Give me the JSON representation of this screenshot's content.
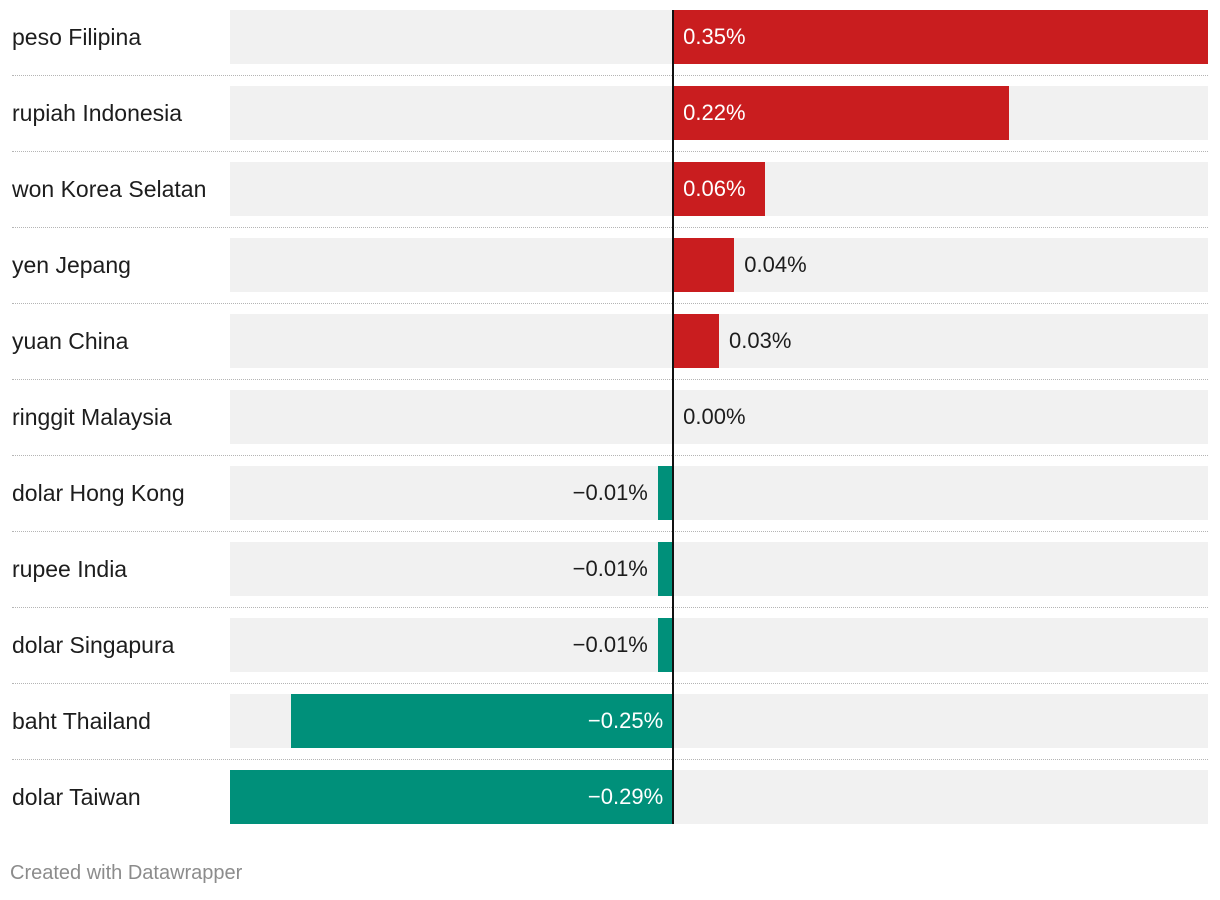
{
  "chart_data": {
    "type": "bar",
    "orientation": "horizontal",
    "categories": [
      "peso Filipina",
      "rupiah Indonesia",
      "won Korea Selatan",
      "yen Jepang",
      "yuan China",
      "ringgit Malaysia",
      "dolar Hong Kong",
      "rupee India",
      "dolar Singapura",
      "baht Thailand",
      "dolar Taiwan"
    ],
    "values": [
      0.35,
      0.22,
      0.06,
      0.04,
      0.03,
      0.0,
      -0.01,
      -0.01,
      -0.01,
      -0.25,
      -0.29
    ],
    "value_labels": [
      "0.35%",
      "0.22%",
      "0.06%",
      "0.04%",
      "0.03%",
      "0.00%",
      "−0.01%",
      "−0.01%",
      "−0.01%",
      "−0.25%",
      "−0.29%"
    ],
    "xlim": [
      -0.29,
      0.35
    ],
    "grid": false,
    "colors": {
      "positive": "#c91d1f",
      "negative": "#00907a",
      "track": "#f1f1f1",
      "axis": "#111111"
    }
  },
  "footer": {
    "credit": "Created with Datawrapper"
  }
}
